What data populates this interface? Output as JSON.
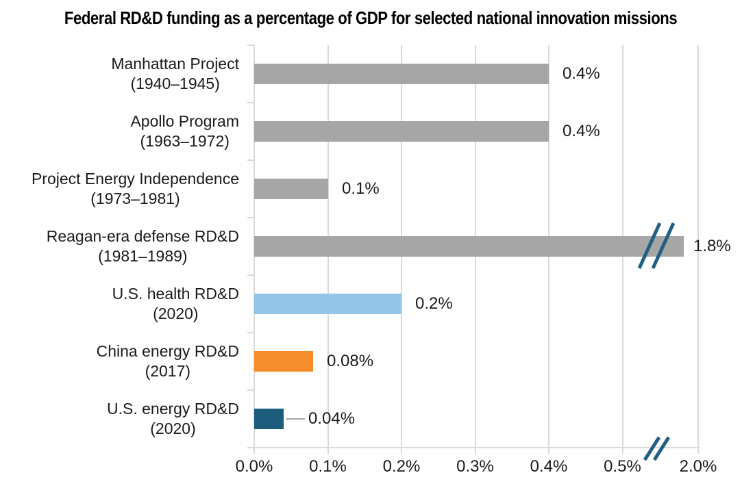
{
  "chart_data": {
    "type": "bar",
    "orientation": "horizontal",
    "title": "Federal RD&D funding as a percentage of GDP for selected national innovation missions",
    "bars": [
      {
        "name": "Manhattan Project",
        "period": "(1940–1945)",
        "value": 0.4,
        "label": "0.4%",
        "color": "gray",
        "broken": false,
        "leader": false
      },
      {
        "name": "Apollo Program",
        "period": "(1963–1972)",
        "value": 0.4,
        "label": "0.4%",
        "color": "gray",
        "broken": false,
        "leader": false
      },
      {
        "name": "Project Energy Independence",
        "period": "(1973–1981)",
        "value": 0.1,
        "label": "0.1%",
        "color": "gray",
        "broken": false,
        "leader": false
      },
      {
        "name": "Reagan-era defense RD&D",
        "period": "(1981–1989)",
        "value": 1.8,
        "label": "1.8%",
        "color": "gray",
        "broken": true,
        "leader": false
      },
      {
        "name": "U.S. health RD&D",
        "period": "(2020)",
        "value": 0.2,
        "label": "0.2%",
        "color": "blue",
        "broken": false,
        "leader": false
      },
      {
        "name": "China energy RD&D",
        "period": "(2017)",
        "value": 0.08,
        "label": "0.08%",
        "color": "orange",
        "broken": false,
        "leader": false
      },
      {
        "name": "U.S. energy RD&D",
        "period": "(2020)",
        "value": 0.04,
        "label": "0.04%",
        "color": "teal",
        "broken": false,
        "leader": true
      }
    ],
    "x_axis": {
      "ticks": [
        {
          "label": "0.0%",
          "value": 0.0
        },
        {
          "label": "0.1%",
          "value": 0.1
        },
        {
          "label": "0.2%",
          "value": 0.2
        },
        {
          "label": "0.3%",
          "value": 0.3
        },
        {
          "label": "0.4%",
          "value": 0.4
        },
        {
          "label": "0.5%",
          "value": 0.5
        },
        {
          "label": "2.0%",
          "value": 2.0
        }
      ],
      "xlim": [
        0,
        2.0
      ],
      "break_after_value": 0.5,
      "grid": true
    },
    "axis_break": {
      "present": true,
      "between_ticks": [
        "0.5%",
        "2.0%"
      ],
      "on_bar": "Reagan-era defense RD&D"
    },
    "colors": {
      "gray": "#a6a6a6",
      "blue": "#92c5e6",
      "orange": "#f68d2c",
      "teal": "#1e5c7e",
      "gridline": "#d9d9d9",
      "leader_line": "#a6a6a6",
      "break_mark": "#215f85",
      "text": "#1a1a1a"
    },
    "legend": null
  }
}
